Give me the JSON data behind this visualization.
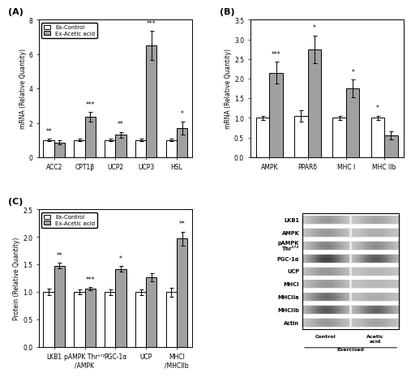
{
  "panel_A": {
    "categories": [
      "ACC2",
      "CPT1β",
      "UCP2",
      "UCP3",
      "HSL"
    ],
    "control": [
      1.0,
      1.0,
      1.0,
      1.0,
      1.0
    ],
    "acetic": [
      0.85,
      2.35,
      1.3,
      6.5,
      1.7
    ],
    "control_err": [
      0.07,
      0.06,
      0.06,
      0.06,
      0.06
    ],
    "acetic_err": [
      0.12,
      0.28,
      0.18,
      0.85,
      0.38
    ],
    "significance": [
      "**",
      "***",
      "**",
      "***",
      "*"
    ],
    "sig_on_control": [
      true,
      false,
      false,
      false,
      false
    ],
    "sig_on_acetic": [
      false,
      true,
      true,
      true,
      true
    ],
    "ylabel": "mRNA (Relative Quantity)",
    "ylim": [
      0,
      8
    ],
    "yticks": [
      0,
      2,
      4,
      6,
      8
    ],
    "title": "(A)"
  },
  "panel_B": {
    "categories": [
      "AMPK",
      "PPARδ",
      "MHC I",
      "MHC IIb"
    ],
    "control": [
      1.0,
      1.05,
      1.0,
      1.0
    ],
    "acetic": [
      2.15,
      2.75,
      1.75,
      0.55
    ],
    "control_err": [
      0.06,
      0.15,
      0.06,
      0.06
    ],
    "acetic_err": [
      0.28,
      0.35,
      0.22,
      0.1
    ],
    "significance": [
      "***",
      "*",
      "*",
      "*"
    ],
    "sig_on_acetic": [
      true,
      true,
      true,
      false
    ],
    "sig_on_control": [
      false,
      false,
      false,
      true
    ],
    "ylabel": "mRNA (Relative Quantity)",
    "ylim": [
      0.0,
      3.5
    ],
    "yticks": [
      0.0,
      0.5,
      1.0,
      1.5,
      2.0,
      2.5,
      3.0,
      3.5
    ],
    "title": "(B)"
  },
  "panel_C": {
    "categories": [
      "LKB1",
      "pAMPK Thr¹⁷²\n/AMPK",
      "PGC-1α",
      "UCP",
      "MHCI\n/MHCIIb"
    ],
    "control": [
      1.0,
      1.0,
      1.0,
      1.0,
      1.0
    ],
    "acetic": [
      1.48,
      1.06,
      1.42,
      1.27,
      1.97
    ],
    "control_err": [
      0.06,
      0.04,
      0.05,
      0.05,
      0.08
    ],
    "acetic_err": [
      0.05,
      0.03,
      0.05,
      0.07,
      0.13
    ],
    "significance": [
      "**",
      "***",
      "*",
      "",
      "**"
    ],
    "sig_on_acetic": [
      true,
      true,
      true,
      false,
      true
    ],
    "sig_on_control": [
      false,
      false,
      false,
      false,
      false
    ],
    "ylabel": "Protein (Relative Quantity)",
    "ylim": [
      0.0,
      2.5
    ],
    "yticks": [
      0.0,
      0.5,
      1.0,
      1.5,
      2.0,
      2.5
    ],
    "title": "(C)"
  },
  "bar_width": 0.35,
  "control_color": "white",
  "acetic_color": "#a0a0a0",
  "edge_color": "black",
  "legend_labels": [
    "Ex-Control",
    "Ex-Acetic acid"
  ],
  "blot_labels": [
    "LKB1",
    "AMPK",
    "pAMPK\nThr¹⁷²",
    "PGC-1α",
    "UCP",
    "MHCI",
    "MHCIIa",
    "MHCIIb",
    "Actin"
  ],
  "blot_band_ctrl": [
    0.55,
    0.55,
    0.45,
    0.15,
    0.55,
    0.55,
    0.35,
    0.25,
    0.55
  ],
  "blot_band_acid": [
    0.6,
    0.65,
    0.5,
    0.25,
    0.7,
    0.7,
    0.65,
    0.3,
    0.6
  ],
  "blot_bg_ctrl": [
    0.82,
    0.8,
    0.82,
    0.82,
    0.78,
    0.78,
    0.78,
    0.8,
    0.8
  ],
  "blot_bg_acid": [
    0.82,
    0.8,
    0.82,
    0.82,
    0.78,
    0.78,
    0.78,
    0.8,
    0.8
  ]
}
